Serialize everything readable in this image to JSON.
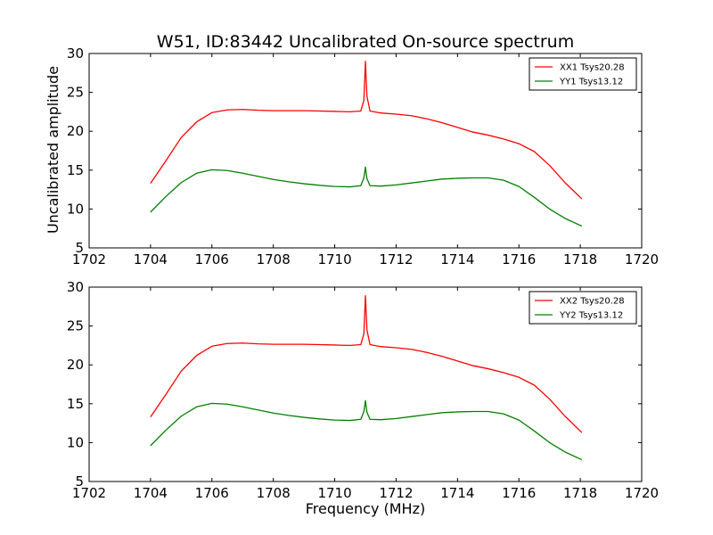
{
  "chart_data": [
    {
      "type": "line",
      "title": "W51, ID:83442 Uncalibrated On-source spectrum",
      "xlabel": "",
      "ylabel": "Uncalibrated amplitude",
      "xlim": [
        1702,
        1720
      ],
      "ylim": [
        5,
        30
      ],
      "xticks": [
        "1702",
        "1704",
        "1706",
        "1708",
        "1710",
        "1712",
        "1714",
        "1716",
        "1718",
        "1720"
      ],
      "yticks": [
        "5",
        "10",
        "15",
        "20",
        "25",
        "30"
      ],
      "legend_position": "top-right",
      "series": [
        {
          "name": "XX1 Tsys20.28",
          "color": "#ff0000",
          "x": [
            1704.0,
            1704.5,
            1705.0,
            1705.5,
            1706.0,
            1706.5,
            1707.0,
            1707.5,
            1708.0,
            1708.5,
            1709.0,
            1709.5,
            1710.0,
            1710.5,
            1710.85,
            1710.95,
            1711.0,
            1711.05,
            1711.15,
            1711.5,
            1712.0,
            1712.5,
            1713.0,
            1713.5,
            1714.0,
            1714.5,
            1715.0,
            1715.5,
            1716.0,
            1716.5,
            1717.0,
            1717.5,
            1718.05
          ],
          "values": [
            13.3,
            16.2,
            19.2,
            21.2,
            22.4,
            22.75,
            22.8,
            22.7,
            22.65,
            22.65,
            22.65,
            22.6,
            22.55,
            22.5,
            22.6,
            24.0,
            29.0,
            24.5,
            22.6,
            22.35,
            22.2,
            22.0,
            21.6,
            21.1,
            20.5,
            19.9,
            19.5,
            19.0,
            18.4,
            17.4,
            15.6,
            13.4,
            11.3
          ]
        },
        {
          "name": "YY1 Tsys13.12",
          "color": "#008000",
          "x": [
            1704.0,
            1704.5,
            1705.0,
            1705.5,
            1706.0,
            1706.5,
            1707.0,
            1707.5,
            1708.0,
            1708.5,
            1709.0,
            1709.5,
            1710.0,
            1710.5,
            1710.85,
            1710.95,
            1711.0,
            1711.05,
            1711.15,
            1711.5,
            1712.0,
            1712.5,
            1713.0,
            1713.5,
            1714.0,
            1714.5,
            1715.0,
            1715.5,
            1716.0,
            1716.5,
            1717.0,
            1717.5,
            1718.05
          ],
          "values": [
            9.6,
            11.6,
            13.4,
            14.6,
            15.05,
            14.95,
            14.6,
            14.2,
            13.8,
            13.5,
            13.25,
            13.05,
            12.9,
            12.85,
            13.0,
            14.0,
            15.4,
            13.9,
            13.0,
            12.95,
            13.1,
            13.35,
            13.6,
            13.85,
            13.95,
            14.0,
            14.0,
            13.7,
            12.9,
            11.5,
            10.0,
            8.8,
            7.8
          ]
        }
      ]
    },
    {
      "type": "line",
      "title": "",
      "xlabel": "Frequency (MHz)",
      "ylabel": "",
      "xlim": [
        1702,
        1720
      ],
      "ylim": [
        5,
        30
      ],
      "xticks": [
        "1702",
        "1704",
        "1706",
        "1708",
        "1710",
        "1712",
        "1714",
        "1716",
        "1718",
        "1720"
      ],
      "yticks": [
        "5",
        "10",
        "15",
        "20",
        "25",
        "30"
      ],
      "legend_position": "top-right",
      "series": [
        {
          "name": "XX2 Tsys20.28",
          "color": "#ff0000",
          "x": [
            1704.0,
            1704.5,
            1705.0,
            1705.5,
            1706.0,
            1706.5,
            1707.0,
            1707.5,
            1708.0,
            1708.5,
            1709.0,
            1709.5,
            1710.0,
            1710.5,
            1710.85,
            1710.95,
            1711.0,
            1711.05,
            1711.15,
            1711.5,
            1712.0,
            1712.5,
            1713.0,
            1713.5,
            1714.0,
            1714.5,
            1715.0,
            1715.5,
            1716.0,
            1716.5,
            1717.0,
            1717.5,
            1718.05
          ],
          "values": [
            13.3,
            16.2,
            19.2,
            21.2,
            22.4,
            22.75,
            22.8,
            22.7,
            22.65,
            22.65,
            22.65,
            22.6,
            22.55,
            22.5,
            22.6,
            24.0,
            28.9,
            24.5,
            22.6,
            22.35,
            22.2,
            22.0,
            21.6,
            21.1,
            20.5,
            19.9,
            19.5,
            19.0,
            18.4,
            17.4,
            15.6,
            13.4,
            11.3
          ]
        },
        {
          "name": "YY2 Tsys13.12",
          "color": "#008000",
          "x": [
            1704.0,
            1704.5,
            1705.0,
            1705.5,
            1706.0,
            1706.5,
            1707.0,
            1707.5,
            1708.0,
            1708.5,
            1709.0,
            1709.5,
            1710.0,
            1710.5,
            1710.85,
            1710.95,
            1711.0,
            1711.05,
            1711.15,
            1711.5,
            1712.0,
            1712.5,
            1713.0,
            1713.5,
            1714.0,
            1714.5,
            1715.0,
            1715.5,
            1716.0,
            1716.5,
            1717.0,
            1717.5,
            1718.05
          ],
          "values": [
            9.6,
            11.6,
            13.4,
            14.6,
            15.05,
            14.95,
            14.6,
            14.2,
            13.8,
            13.5,
            13.25,
            13.05,
            12.9,
            12.85,
            13.0,
            14.0,
            15.4,
            13.9,
            13.0,
            12.95,
            13.1,
            13.35,
            13.6,
            13.85,
            13.95,
            14.0,
            14.0,
            13.7,
            12.9,
            11.5,
            10.0,
            8.8,
            7.8
          ]
        }
      ]
    }
  ]
}
